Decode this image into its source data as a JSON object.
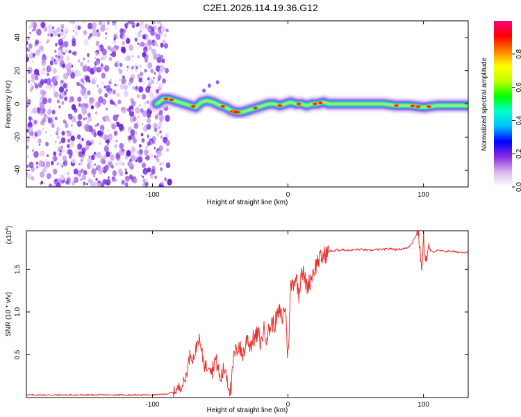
{
  "title": "C2E1.2026.114.19.36.G12",
  "chart_data": [
    {
      "type": "heatmap",
      "name": "spectrogram",
      "xlabel": "Height of straight line (km)",
      "ylabel": "Frequency (Hz)",
      "xlim": [
        -193,
        133
      ],
      "ylim": [
        -50,
        50
      ],
      "x_ticks": [
        -100,
        0,
        100
      ],
      "x_tick_labels": [
        "-100",
        "0",
        "100"
      ],
      "y_ticks": [
        -40,
        -20,
        0,
        20,
        40
      ],
      "y_tick_labels": [
        "-40",
        "-20",
        "0",
        "20",
        "40"
      ],
      "noise_region_x": [
        -193,
        -90
      ],
      "signal_start_x": -97,
      "ridge_x": [
        -97,
        -95,
        -92,
        -88,
        -84,
        -80,
        -76,
        -72,
        -68,
        -64,
        -60,
        -55,
        -50,
        -46,
        -42,
        -38,
        -34,
        -30,
        -26,
        -22,
        -18,
        -14,
        -10,
        -6,
        -2,
        2,
        6,
        10,
        14,
        18,
        22,
        26,
        30,
        40,
        50,
        60,
        70,
        80,
        90,
        100,
        110,
        120,
        133
      ],
      "ridge_y": [
        0,
        1,
        3,
        3,
        2,
        1,
        0,
        -1,
        -2,
        1,
        2,
        1,
        -1,
        -2,
        -4,
        -5,
        -5,
        -4,
        -3,
        -2,
        -1,
        0,
        0,
        -1,
        0,
        1,
        0,
        0,
        -1,
        0,
        0,
        1,
        0,
        0,
        0,
        0,
        0,
        -1,
        -1,
        -2,
        -1,
        -1,
        -1
      ],
      "colorbar": {
        "label": "Normalized spectral amplitude",
        "range": [
          0,
          1
        ],
        "ticks": [
          0,
          0.2,
          0.4,
          0.6,
          0.8
        ],
        "tick_labels": [
          "0.0",
          "0.2",
          "0.4",
          "0.6",
          "0.8"
        ],
        "colors": [
          "#ffffff",
          "#d8b8f0",
          "#8a2be2",
          "#0000ff",
          "#00bfff",
          "#00ffcc",
          "#00ff00",
          "#bfff00",
          "#ffff00",
          "#ff8000",
          "#ff0000",
          "#ff0080"
        ]
      }
    },
    {
      "type": "line",
      "name": "snr",
      "xlabel": "Height of straight line (km)",
      "ylabel": "SNR (10 * v/v)",
      "y_multiplier": "(x10",
      "y_multiplier_exp": "4",
      "y_multiplier_close": ")",
      "xlim": [
        -193,
        133
      ],
      "ylim": [
        0.0,
        1.95
      ],
      "x_ticks": [
        -100,
        0,
        100
      ],
      "x_tick_labels": [
        "-100",
        "0",
        "100"
      ],
      "y_ticks": [
        0.5,
        1.0,
        1.5
      ],
      "y_tick_labels": [
        "0.5",
        "1.0",
        "1.5"
      ],
      "series": [
        {
          "name": "SNR",
          "color": "#e8302b",
          "x": [
            -193,
            -150,
            -100,
            -90,
            -85,
            -80,
            -78,
            -76,
            -74,
            -72,
            -70,
            -68,
            -66,
            -64,
            -62,
            -60,
            -58,
            -56,
            -54,
            -52,
            -50,
            -48,
            -46,
            -44,
            -42,
            -40,
            -38,
            -36,
            -34,
            -32,
            -30,
            -28,
            -26,
            -24,
            -22,
            -20,
            -18,
            -16,
            -14,
            -12,
            -10,
            -8,
            -6,
            -4,
            -2,
            0,
            2,
            4,
            6,
            8,
            10,
            12,
            14,
            16,
            18,
            20,
            22,
            24,
            26,
            28,
            30,
            32,
            34,
            36,
            38,
            40,
            45,
            50,
            55,
            60,
            65,
            70,
            75,
            80,
            85,
            88,
            90,
            92,
            94,
            96,
            98,
            99,
            100,
            101,
            102,
            104,
            106,
            110,
            115,
            120,
            125,
            133
          ],
          "y": [
            0.03,
            0.03,
            0.03,
            0.04,
            0.06,
            0.12,
            0.15,
            0.2,
            0.35,
            0.52,
            0.45,
            0.55,
            0.7,
            0.55,
            0.4,
            0.35,
            0.42,
            0.3,
            0.45,
            0.38,
            0.2,
            0.3,
            0.35,
            0.15,
            0.08,
            0.48,
            0.55,
            0.62,
            0.5,
            0.55,
            0.72,
            0.6,
            0.68,
            0.7,
            0.75,
            0.62,
            0.8,
            0.72,
            0.78,
            0.88,
            0.85,
            0.95,
            1.0,
            0.92,
            1.1,
            0.45,
            1.3,
            1.35,
            1.42,
            1.2,
            1.52,
            1.4,
            1.3,
            1.35,
            1.45,
            1.52,
            1.6,
            1.62,
            1.65,
            1.68,
            1.7,
            1.72,
            1.71,
            1.73,
            1.72,
            1.73,
            1.72,
            1.73,
            1.73,
            1.72,
            1.73,
            1.73,
            1.74,
            1.73,
            1.74,
            1.75,
            1.78,
            1.82,
            1.88,
            1.95,
            1.62,
            1.48,
            1.9,
            1.7,
            1.6,
            1.75,
            1.7,
            1.72,
            1.71,
            1.71,
            1.7,
            1.7
          ]
        }
      ]
    }
  ]
}
